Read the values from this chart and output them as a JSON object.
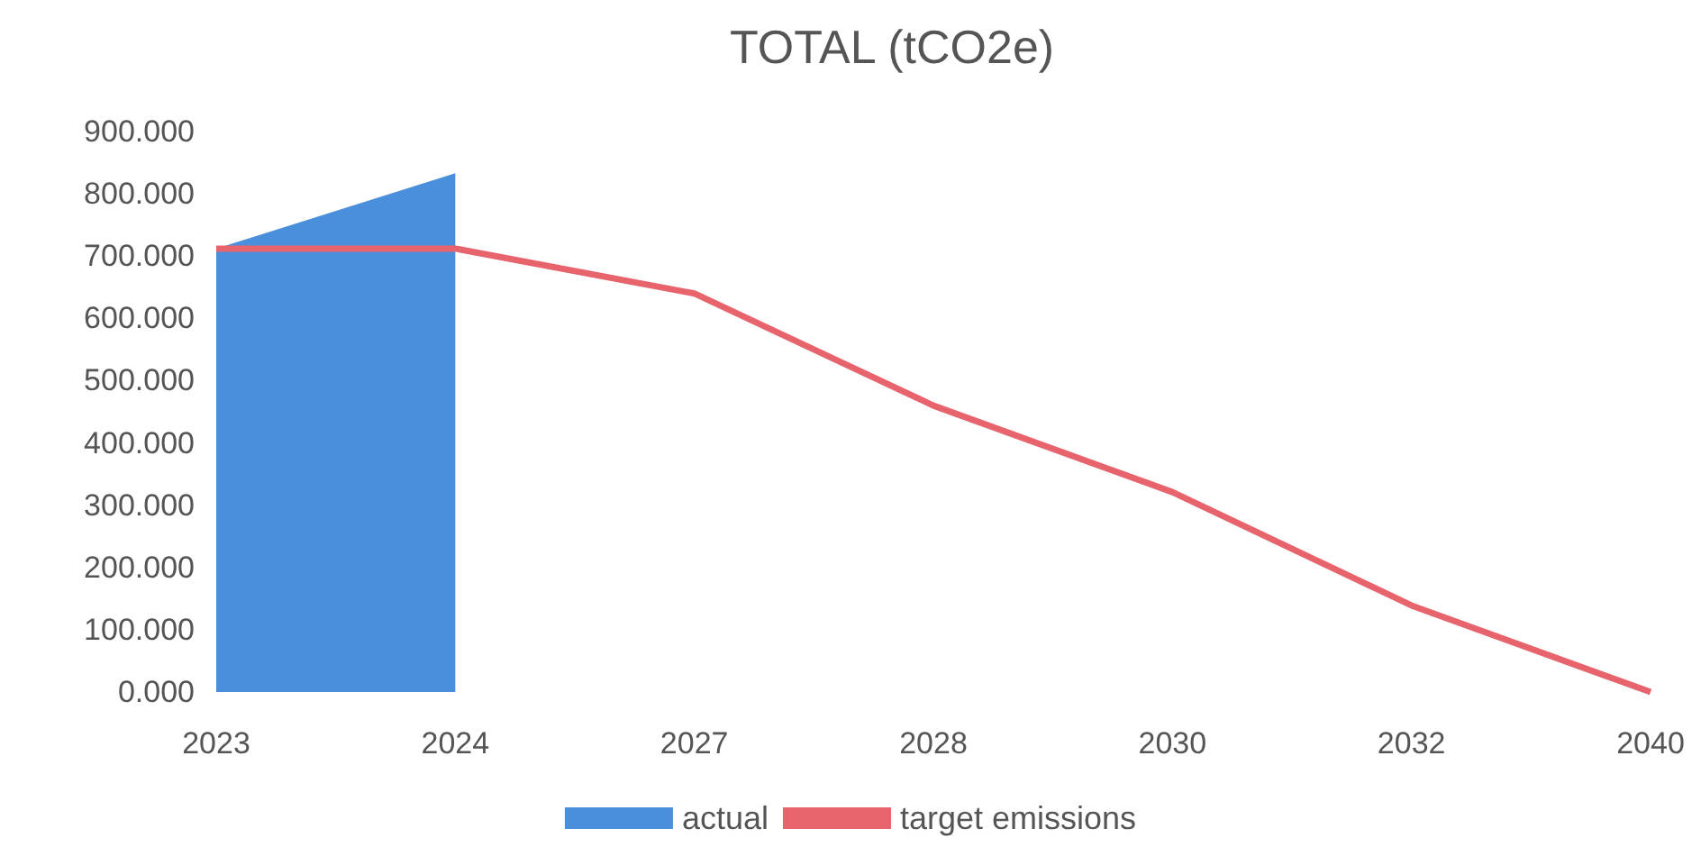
{
  "chart_data": {
    "type": "line",
    "title": "TOTAL (tCO2e)",
    "categories": [
      "2023",
      "2024",
      "2027",
      "2028",
      "2030",
      "2032",
      "2040"
    ],
    "series": [
      {
        "name": "actual",
        "type": "area",
        "color": "#4a8fdb",
        "values": [
          712,
          833,
          null,
          null,
          null,
          null,
          null
        ]
      },
      {
        "name": "target emissions",
        "color": "#e8646c",
        "values": [
          712,
          712,
          640,
          460,
          321,
          139,
          0
        ]
      }
    ],
    "ylim": [
      0,
      900
    ],
    "yticks": [
      {
        "value": 0,
        "label": "0.000"
      },
      {
        "value": 100,
        "label": "100.000"
      },
      {
        "value": 200,
        "label": "200.000"
      },
      {
        "value": 300,
        "label": "300.000"
      },
      {
        "value": 400,
        "label": "400.000"
      },
      {
        "value": 500,
        "label": "500.000"
      },
      {
        "value": 600,
        "label": "600.000"
      },
      {
        "value": 700,
        "label": "700.000"
      },
      {
        "value": 800,
        "label": "800.000"
      },
      {
        "value": 900,
        "label": "900.000"
      }
    ],
    "legend": "bottom",
    "grid": false,
    "marker": "none",
    "line_style": "solid"
  }
}
